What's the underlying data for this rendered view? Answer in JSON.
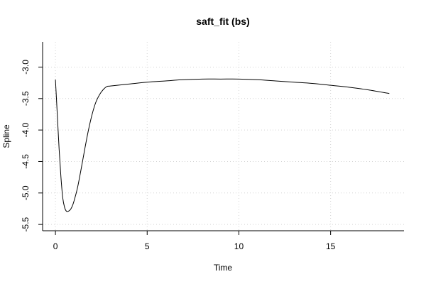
{
  "chart_data": {
    "type": "line",
    "title": "saft_fit (bs)",
    "xlabel": "Time",
    "ylabel": "Spline",
    "xlim": [
      -0.7,
      19.0
    ],
    "ylim": [
      -5.6,
      -2.6
    ],
    "xticks": [
      0,
      5,
      10,
      15
    ],
    "yticks": [
      -3.0,
      -3.5,
      -4.0,
      -4.5,
      -5.0,
      -5.5
    ],
    "xtick_labels": [
      "0",
      "5",
      "10",
      "15"
    ],
    "ytick_labels": [
      "-3.0",
      "-3.5",
      "-4.0",
      "-4.5",
      "-5.0",
      "-5.5"
    ],
    "grid": true,
    "line_color": "#000000",
    "grid_color": "#d3d3d3",
    "series": [
      {
        "x": [
          0,
          0.1,
          0.2,
          0.3,
          0.4,
          0.5,
          0.6,
          0.7,
          0.8,
          0.9,
          1.0,
          1.2,
          1.4,
          1.6,
          1.8,
          2.0,
          2.2,
          2.4,
          2.6,
          2.8,
          3.0,
          4,
          5,
          6,
          7,
          8,
          9,
          10,
          11,
          12,
          13,
          14,
          15,
          16,
          17,
          18.2
        ],
        "y": [
          -3.2,
          -3.75,
          -4.3,
          -4.75,
          -5.08,
          -5.23,
          -5.29,
          -5.29,
          -5.27,
          -5.22,
          -5.14,
          -4.92,
          -4.62,
          -4.3,
          -4.0,
          -3.75,
          -3.56,
          -3.44,
          -3.36,
          -3.31,
          -3.3,
          -3.27,
          -3.24,
          -3.22,
          -3.2,
          -3.19,
          -3.19,
          -3.19,
          -3.2,
          -3.22,
          -3.24,
          -3.26,
          -3.29,
          -3.32,
          -3.36,
          -3.42
        ]
      }
    ]
  }
}
